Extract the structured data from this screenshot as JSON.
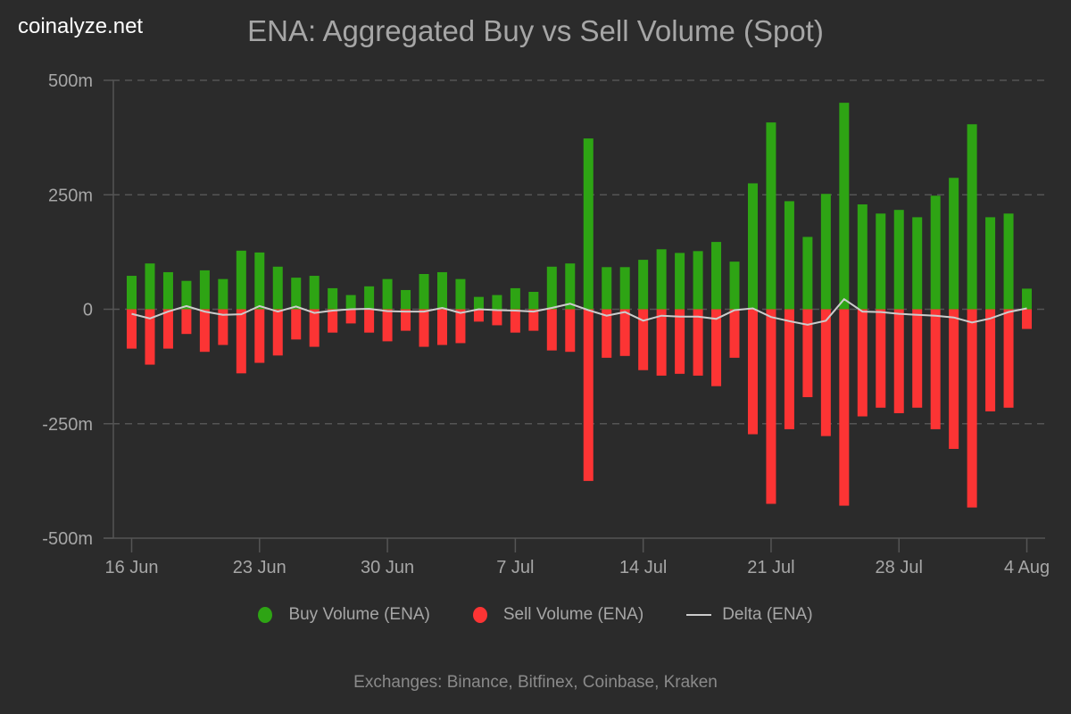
{
  "brand": "coinalyze.net",
  "colors": {
    "background": "#2b2b2b",
    "buy": "#2ea414",
    "sell": "#fc3434",
    "delta": "#cccccc",
    "grid": "#555555",
    "axis": "#555555",
    "text": "#a6a6a6"
  },
  "legend": [
    {
      "label": "Buy Volume (ENA)",
      "marker": "circle",
      "color": "#2ea414"
    },
    {
      "label": "Sell Volume (ENA)",
      "marker": "circle",
      "color": "#fc3434"
    },
    {
      "label": "Delta (ENA)",
      "marker": "line",
      "color": "#cccccc"
    }
  ],
  "footer": "Exchanges: Binance, Bitfinex, Coinbase, Kraken",
  "chart_data": {
    "type": "bar",
    "title": "ENA: Aggregated Buy vs Sell Volume (Spot)",
    "xlabel": "",
    "ylabel": "",
    "ylim": [
      -500,
      500
    ],
    "yunit": "m",
    "yticks": [
      {
        "value": 500,
        "label": "500m"
      },
      {
        "value": 250,
        "label": "250m"
      },
      {
        "value": 0,
        "label": "0"
      },
      {
        "value": -250,
        "label": "-250m"
      },
      {
        "value": -500,
        "label": "-500m"
      }
    ],
    "grid": true,
    "legend_position": "bottom",
    "x_start": "16 Jun",
    "xticks": [
      {
        "index": 0,
        "label": "16 Jun"
      },
      {
        "index": 7,
        "label": "23 Jun"
      },
      {
        "index": 14,
        "label": "30 Jun"
      },
      {
        "index": 21,
        "label": "7 Jul"
      },
      {
        "index": 28,
        "label": "14 Jul"
      },
      {
        "index": 35,
        "label": "21 Jul"
      },
      {
        "index": 42,
        "label": "28 Jul"
      },
      {
        "index": 49,
        "label": "4 Aug"
      }
    ],
    "series": [
      {
        "name": "Buy Volume (ENA)",
        "type": "bar",
        "values": [
          73,
          100,
          81,
          62,
          85,
          66,
          128,
          124,
          93,
          69,
          73,
          46,
          31,
          50,
          66,
          42,
          77,
          81,
          66,
          27,
          31,
          46,
          38,
          93,
          100,
          373,
          92,
          92,
          108,
          131,
          123,
          127,
          147,
          104,
          275,
          408,
          236,
          158,
          252,
          451,
          229,
          209,
          217,
          201,
          248,
          287,
          404,
          201,
          209,
          45
        ]
      },
      {
        "name": "Sell Volume (ENA)",
        "type": "bar",
        "values": [
          -86,
          -121,
          -86,
          -54,
          -93,
          -78,
          -140,
          -117,
          -101,
          -66,
          -82,
          -51,
          -31,
          -51,
          -70,
          -47,
          -82,
          -78,
          -74,
          -27,
          -35,
          -51,
          -47,
          -90,
          -93,
          -375,
          -106,
          -102,
          -133,
          -145,
          -141,
          -145,
          -168,
          -106,
          -273,
          -425,
          -262,
          -192,
          -277,
          -429,
          -234,
          -215,
          -227,
          -215,
          -262,
          -305,
          -433,
          -223,
          -215,
          -43
        ]
      },
      {
        "name": "Delta (ENA)",
        "type": "line",
        "values": [
          -10,
          -20,
          -5,
          7,
          -5,
          -12,
          -11,
          7,
          -5,
          6,
          -8,
          -3,
          0,
          1,
          -4,
          -5,
          -5,
          3,
          -8,
          0,
          -2,
          -3,
          -5,
          3,
          12,
          -2,
          -14,
          -6,
          -25,
          -14,
          -16,
          -16,
          -21,
          -2,
          2,
          -17,
          -26,
          -34,
          -25,
          22,
          -5,
          -6,
          -10,
          -12,
          -14,
          -18,
          -29,
          -20,
          -6,
          2
        ]
      }
    ]
  }
}
